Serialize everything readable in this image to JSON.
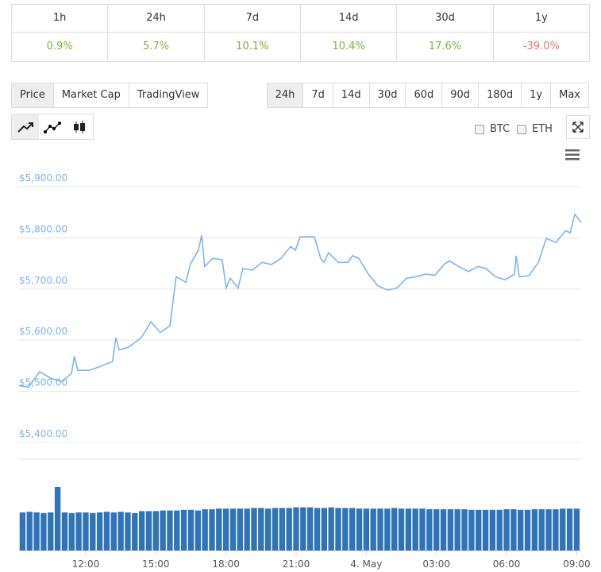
{
  "changes": {
    "headers": [
      "1h",
      "24h",
      "7d",
      "14d",
      "30d",
      "1y"
    ],
    "values": [
      "0.9%",
      "5.7%",
      "10.1%",
      "10.4%",
      "17.6%",
      "-39.0%"
    ]
  },
  "view_tabs": [
    "Price",
    "Market Cap",
    "TradingView"
  ],
  "selected_view": 0,
  "range_tabs": [
    "24h",
    "7d",
    "14d",
    "30d",
    "60d",
    "90d",
    "180d",
    "1y",
    "Max"
  ],
  "selected_range": 0,
  "compare": [
    "BTC",
    "ETH"
  ],
  "chart_data": [
    {
      "type": "line",
      "color": "#7cb5ec",
      "grid": true,
      "x": [
        9.15,
        9.55,
        10.03,
        10.54,
        10.98,
        11.39,
        11.52,
        11.66,
        12.14,
        12.54,
        12.95,
        13.15,
        13.29,
        13.43,
        13.83,
        14.38,
        14.79,
        15.19,
        15.6,
        15.74,
        15.87,
        16.28,
        16.48,
        16.82,
        16.96,
        17.09,
        17.43,
        17.84,
        18.01,
        18.18,
        18.52,
        18.72,
        19.13,
        19.54,
        19.95,
        20.36,
        20.76,
        20.97,
        21.17,
        21.58,
        21.78,
        22.05,
        22.19,
        22.39,
        22.8,
        23.21,
        23.41,
        23.68,
        24.09,
        24.5,
        24.91,
        25.31,
        25.72,
        26.13,
        26.54,
        26.94,
        27.35,
        27.56,
        27.96,
        28.37,
        28.78,
        29.12,
        29.53,
        29.93,
        30.34,
        30.41,
        30.54,
        30.95,
        31.36,
        31.7,
        32.11,
        32.52,
        32.72,
        32.92,
        33.19
      ],
      "values": [
        5511,
        5508,
        5538,
        5525,
        5519,
        5535,
        5569,
        5541,
        5541,
        5547,
        5555,
        5558,
        5605,
        5581,
        5586,
        5605,
        5636,
        5615,
        5628,
        5678,
        5724,
        5713,
        5749,
        5776,
        5805,
        5744,
        5760,
        5757,
        5702,
        5721,
        5702,
        5740,
        5737,
        5752,
        5748,
        5760,
        5783,
        5776,
        5802,
        5802,
        5802,
        5760,
        5752,
        5771,
        5752,
        5752,
        5765,
        5760,
        5729,
        5706,
        5698,
        5702,
        5721,
        5724,
        5729,
        5727,
        5749,
        5755,
        5744,
        5734,
        5744,
        5740,
        5724,
        5718,
        5729,
        5765,
        5724,
        5726,
        5752,
        5799,
        5791,
        5814,
        5810,
        5846,
        5830
      ],
      "xlim": [
        9.15,
        33.19
      ],
      "ylim": [
        5400,
        5900
      ],
      "yticks": [
        {
          "value": 5400,
          "label": "$5,400.00"
        },
        {
          "value": 5500,
          "label": "$5,500.00"
        },
        {
          "value": 5600,
          "label": "$5,600.00"
        },
        {
          "value": 5700,
          "label": "$5,700.00"
        },
        {
          "value": 5800,
          "label": "$5,800.00"
        },
        {
          "value": 5900,
          "label": "$5,900.00"
        }
      ],
      "xticks": [
        {
          "value": 12,
          "label": "12:00"
        },
        {
          "value": 15,
          "label": "15:00"
        },
        {
          "value": 18,
          "label": "18:00"
        },
        {
          "value": 21,
          "label": "21:00"
        },
        {
          "value": 24,
          "label": "4. May"
        },
        {
          "value": 27,
          "label": "03:00"
        },
        {
          "value": 30,
          "label": "06:00"
        },
        {
          "value": 33,
          "label": "09:00"
        }
      ]
    },
    {
      "type": "bar",
      "color": "#2f73b8",
      "xlim": [
        9.15,
        33.19
      ],
      "ylim": [
        0,
        100
      ],
      "x": [
        9.3,
        9.6,
        9.9,
        10.2,
        10.5,
        10.8,
        11.1,
        11.4,
        11.7,
        12.0,
        12.3,
        12.6,
        12.9,
        13.2,
        13.5,
        13.8,
        14.1,
        14.4,
        14.7,
        15.0,
        15.3,
        15.6,
        15.9,
        16.2,
        16.5,
        16.8,
        17.1,
        17.4,
        17.7,
        18.0,
        18.3,
        18.6,
        18.9,
        19.2,
        19.5,
        19.8,
        20.1,
        20.4,
        20.7,
        21.0,
        21.3,
        21.6,
        21.9,
        22.2,
        22.5,
        22.8,
        23.1,
        23.4,
        23.7,
        24.0,
        24.3,
        24.6,
        24.9,
        25.2,
        25.5,
        25.8,
        26.1,
        26.4,
        26.7,
        27.0,
        27.3,
        27.6,
        27.9,
        28.2,
        28.5,
        28.8,
        29.1,
        29.4,
        29.7,
        30.0,
        30.3,
        30.6,
        30.9,
        31.2,
        31.5,
        31.8,
        32.1,
        32.4,
        32.7,
        33.0
      ],
      "values": [
        60,
        61,
        60,
        59,
        60,
        100,
        60,
        59,
        60,
        60,
        59,
        60,
        61,
        60,
        61,
        60,
        59,
        62,
        62,
        62,
        63,
        63,
        63,
        64,
        64,
        63,
        65,
        65,
        66,
        66,
        66,
        66,
        66,
        67,
        67,
        66,
        67,
        67,
        67,
        68,
        68,
        68,
        67,
        67,
        68,
        67,
        67,
        67,
        66,
        66,
        66,
        66,
        66,
        67,
        66,
        66,
        66,
        66,
        65,
        65,
        65,
        65,
        65,
        65,
        64,
        64,
        64,
        64,
        64,
        65,
        65,
        64,
        64,
        65,
        65,
        65,
        65,
        66,
        66,
        66
      ]
    }
  ]
}
